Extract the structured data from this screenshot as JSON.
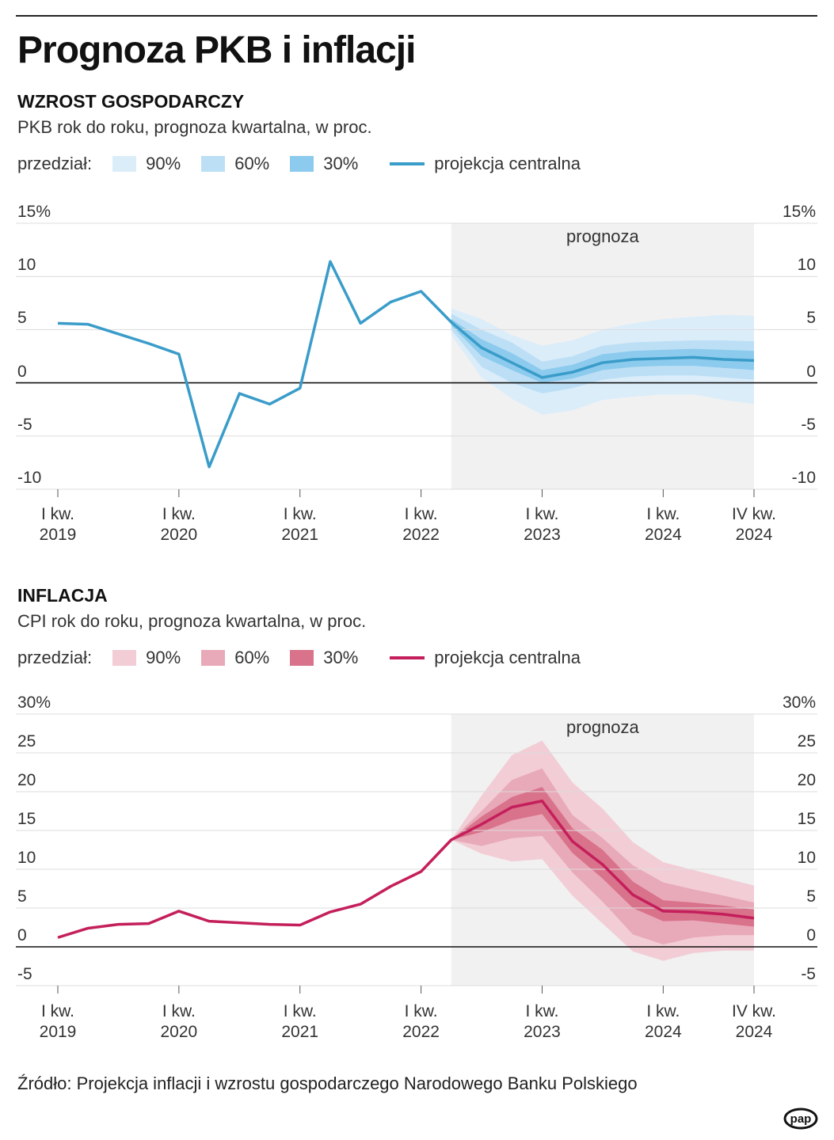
{
  "title": "Prognoza PKB i inflacji",
  "source": "Źródło: Projekcja inflacji i wzrostu gospodarczego Narodowego Banku Polskiego",
  "logo": "pap",
  "chart_data": [
    {
      "type": "fan",
      "title": "WZROST GOSPODARCZY",
      "subtitle": "PKB rok do roku, prognoza kwartalna, w proc.",
      "legend_label": "przedział:",
      "annotation": "prognoza",
      "categories": [
        "I kw. 2019",
        null,
        null,
        null,
        "I kw. 2020",
        null,
        null,
        null,
        "I kw. 2021",
        null,
        null,
        null,
        "I kw. 2022",
        null,
        null,
        null,
        "I kw. 2023",
        null,
        null,
        null,
        "I kw. 2024",
        null,
        null,
        "IV kw. 2024"
      ],
      "bands": [
        {
          "name": "90%",
          "color": "#dcedfa",
          "low": [
            null,
            null,
            null,
            null,
            null,
            null,
            null,
            null,
            null,
            null,
            null,
            null,
            null,
            4.5,
            0.5,
            -1.5,
            -3.0,
            -2.6,
            -1.6,
            -1.3,
            -1.1,
            -1.1,
            -1.6,
            -2.0
          ],
          "high": [
            null,
            null,
            null,
            null,
            null,
            null,
            null,
            null,
            null,
            null,
            null,
            null,
            null,
            7.0,
            6.0,
            4.5,
            3.5,
            4.0,
            5.0,
            5.6,
            6.0,
            6.2,
            6.4,
            6.3
          ]
        },
        {
          "name": "60%",
          "color": "#bddff5",
          "low": [
            null,
            null,
            null,
            null,
            null,
            null,
            null,
            null,
            null,
            null,
            null,
            null,
            null,
            5.0,
            1.5,
            0.0,
            -1.0,
            -0.5,
            0.3,
            0.6,
            0.7,
            0.7,
            0.5,
            0.3
          ],
          "high": [
            null,
            null,
            null,
            null,
            null,
            null,
            null,
            null,
            null,
            null,
            null,
            null,
            null,
            6.5,
            5.0,
            3.8,
            2.0,
            2.5,
            3.5,
            3.8,
            3.9,
            4.0,
            4.0,
            3.9
          ]
        },
        {
          "name": "30%",
          "color": "#8ccbed",
          "low": [
            null,
            null,
            null,
            null,
            null,
            null,
            null,
            null,
            null,
            null,
            null,
            null,
            null,
            5.4,
            2.5,
            1.2,
            0.0,
            0.4,
            1.2,
            1.5,
            1.6,
            1.6,
            1.4,
            1.2
          ],
          "high": [
            null,
            null,
            null,
            null,
            null,
            null,
            null,
            null,
            null,
            null,
            null,
            null,
            null,
            6.0,
            4.1,
            2.8,
            1.2,
            1.7,
            2.7,
            3.0,
            3.1,
            3.2,
            3.1,
            3.0
          ]
        }
      ],
      "series": [
        {
          "name": "projekcja centralna",
          "color": "#3a9cc9",
          "values": [
            5.6,
            5.5,
            4.6,
            3.7,
            2.7,
            -7.9,
            -1.0,
            -2.0,
            -0.5,
            11.4,
            5.6,
            7.6,
            8.6,
            5.7,
            3.3,
            1.9,
            0.5,
            1.0,
            1.9,
            2.2,
            2.3,
            2.4,
            2.2,
            2.1
          ]
        }
      ],
      "ylim": [
        -10,
        15
      ],
      "yticks": [
        {
          "value": 15,
          "label": "15%"
        },
        10,
        5,
        0,
        -5,
        -10
      ],
      "grid": true
    },
    {
      "type": "fan",
      "title": "INFLACJA",
      "subtitle": "CPI rok do roku, prognoza kwartalna, w proc.",
      "legend_label": "przedział:",
      "annotation": "prognoza",
      "categories": [
        "I kw. 2019",
        null,
        null,
        null,
        "I kw. 2020",
        null,
        null,
        null,
        "I kw. 2021",
        null,
        null,
        null,
        "I kw. 2022",
        null,
        null,
        null,
        "I kw. 2023",
        null,
        null,
        null,
        "I kw. 2024",
        null,
        null,
        "IV kw. 2024"
      ],
      "bands": [
        {
          "name": "90%",
          "color": "#f2cdd6",
          "low": [
            null,
            null,
            null,
            null,
            null,
            null,
            null,
            null,
            null,
            null,
            null,
            null,
            null,
            13.8,
            12.0,
            11.0,
            11.3,
            6.6,
            3.0,
            -0.6,
            -1.8,
            -0.8,
            -0.5,
            -0.5
          ],
          "high": [
            null,
            null,
            null,
            null,
            null,
            null,
            null,
            null,
            null,
            null,
            null,
            null,
            null,
            13.8,
            19.5,
            24.7,
            26.6,
            21.2,
            17.8,
            13.5,
            10.9,
            9.9,
            8.9,
            7.9
          ]
        },
        {
          "name": "60%",
          "color": "#e8a9b8",
          "low": [
            null,
            null,
            null,
            null,
            null,
            null,
            null,
            null,
            null,
            null,
            null,
            null,
            null,
            13.8,
            13.0,
            14.0,
            14.3,
            9.6,
            5.8,
            1.6,
            0.3,
            1.2,
            1.5,
            1.5
          ],
          "high": [
            null,
            null,
            null,
            null,
            null,
            null,
            null,
            null,
            null,
            null,
            null,
            null,
            null,
            13.8,
            17.5,
            21.5,
            23.0,
            17.0,
            14.0,
            10.5,
            8.3,
            7.4,
            6.6,
            5.7
          ]
        },
        {
          "name": "30%",
          "color": "#d9728b",
          "low": [
            null,
            null,
            null,
            null,
            null,
            null,
            null,
            null,
            null,
            null,
            null,
            null,
            null,
            13.8,
            14.8,
            16.3,
            17.1,
            12.1,
            8.8,
            5.0,
            3.3,
            3.4,
            3.0,
            2.6
          ],
          "high": [
            null,
            null,
            null,
            null,
            null,
            null,
            null,
            null,
            null,
            null,
            null,
            null,
            null,
            13.8,
            16.8,
            19.3,
            20.6,
            15.3,
            12.5,
            8.4,
            6.0,
            5.7,
            5.3,
            4.8
          ]
        }
      ],
      "series": [
        {
          "name": "projekcja centralna",
          "color": "#c41f5b",
          "values": [
            1.2,
            2.4,
            2.9,
            3.0,
            4.6,
            3.3,
            3.1,
            2.9,
            2.8,
            4.5,
            5.5,
            7.8,
            9.7,
            13.8,
            15.8,
            18.0,
            18.8,
            13.6,
            10.6,
            6.7,
            4.6,
            4.5,
            4.2,
            3.7
          ]
        }
      ],
      "ylim": [
        -5,
        30
      ],
      "yticks": [
        {
          "value": 30,
          "label": "30%"
        },
        25,
        20,
        15,
        10,
        5,
        0,
        -5
      ],
      "grid": true
    }
  ]
}
